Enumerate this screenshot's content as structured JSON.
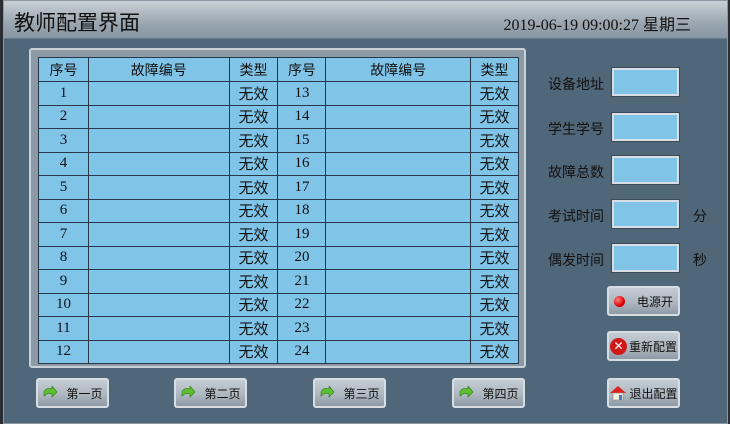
{
  "title": "教师配置界面",
  "datetime": "2019-06-19 09:00:27 星期三",
  "table": {
    "headers": [
      "序号",
      "故障编号",
      "类型",
      "序号",
      "故障编号",
      "类型"
    ],
    "rows": [
      {
        "a": "1",
        "at": "无效",
        "b": "13",
        "bt": "无效"
      },
      {
        "a": "2",
        "at": "无效",
        "b": "14",
        "bt": "无效"
      },
      {
        "a": "3",
        "at": "无效",
        "b": "15",
        "bt": "无效"
      },
      {
        "a": "4",
        "at": "无效",
        "b": "16",
        "bt": "无效"
      },
      {
        "a": "5",
        "at": "无效",
        "b": "17",
        "bt": "无效"
      },
      {
        "a": "6",
        "at": "无效",
        "b": "18",
        "bt": "无效"
      },
      {
        "a": "7",
        "at": "无效",
        "b": "19",
        "bt": "无效"
      },
      {
        "a": "8",
        "at": "无效",
        "b": "20",
        "bt": "无效"
      },
      {
        "a": "9",
        "at": "无效",
        "b": "21",
        "bt": "无效"
      },
      {
        "a": "10",
        "at": "无效",
        "b": "22",
        "bt": "无效"
      },
      {
        "a": "11",
        "at": "无效",
        "b": "23",
        "bt": "无效"
      },
      {
        "a": "12",
        "at": "无效",
        "b": "24",
        "bt": "无效"
      }
    ]
  },
  "fields": [
    {
      "label": "设备地址",
      "value": "",
      "unit": ""
    },
    {
      "label": "学生学号",
      "value": "",
      "unit": ""
    },
    {
      "label": "故障总数",
      "value": "",
      "unit": ""
    },
    {
      "label": "考试时间",
      "value": "",
      "unit": "分"
    },
    {
      "label": "偶发时间",
      "value": "",
      "unit": "秒"
    }
  ],
  "buttons": {
    "power": "电源开",
    "reset": "重新配置",
    "exit": "退出配置"
  },
  "pages": [
    "第一页",
    "第二页",
    "第三页",
    "第四页"
  ],
  "colors": {
    "cell": "#80c4e8",
    "background": "#506679"
  }
}
